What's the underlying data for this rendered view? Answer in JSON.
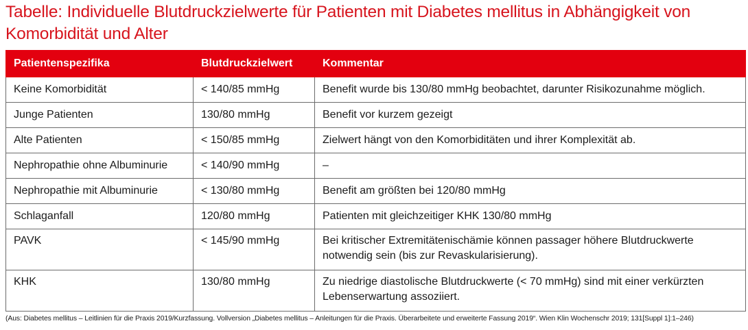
{
  "title": "Tabelle: Individuelle Blutdruckzielwerte für Patienten mit Diabetes mellitus in Abhängigkeit von Komorbidität und Alter",
  "table": {
    "headers": [
      "Patientenspezifika",
      "Blutdruckzielwert",
      "Kommentar"
    ],
    "rows": [
      [
        "Keine Komorbidität",
        "< 140/85 mmHg",
        "Benefit wurde bis 130/80 mmHg beobachtet, darunter Risikozunahme möglich."
      ],
      [
        "Junge Patienten",
        "130/80 mmHg",
        "Benefit vor kurzem gezeigt"
      ],
      [
        "Alte Patienten",
        "< 150/85 mmHg",
        "Zielwert hängt von den Komorbiditäten und ihrer Komplexität ab."
      ],
      [
        "Nephropathie ohne Albuminurie",
        "< 140/90 mmHg",
        "–"
      ],
      [
        "Nephropathie mit Albuminurie",
        "< 130/80 mmHg",
        "Benefit am größten bei 120/80 mmHg"
      ],
      [
        "Schlaganfall",
        "120/80 mmHg",
        "Patienten mit gleichzeitiger KHK 130/80 mmHg"
      ],
      [
        "PAVK",
        "< 145/90 mmHg",
        "Bei kritischer Extremitätenischämie können passager höhere Blutdruckwerte notwendig sein (bis zur Revaskularisierung)."
      ],
      [
        "KHK",
        "130/80 mmHg",
        "Zu niedrige diastolische Blutdruckwerte (< 70 mmHg) sind mit einer verkürzten Lebenserwartung assoziiert."
      ]
    ]
  },
  "footnote": "(Aus: Diabetes mellitus – Leitlinien für die Praxis 2019/Kurzfassung. Vollversion „Diabetes mellitus – Anleitungen für die Praxis. Überarbeitete und erweiterte Fassung 2019“. Wien Klin Wochenschr 2019; 131[Suppl 1]:1–246)",
  "colors": {
    "title": "#d7141d",
    "header_background": "#e3000f",
    "header_text": "#ffffff",
    "border": "#6b6b6b"
  }
}
